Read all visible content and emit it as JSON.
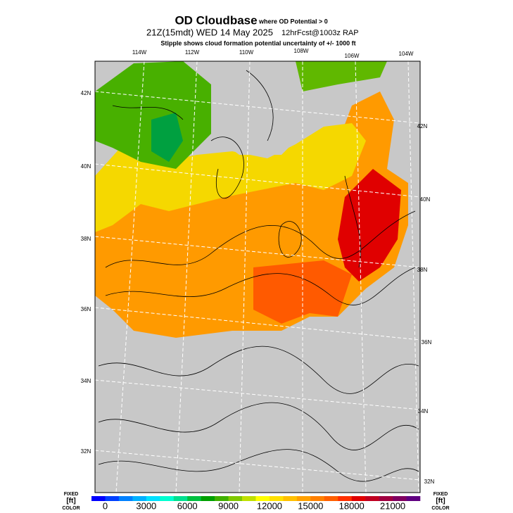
{
  "header": {
    "title": "OD Cloudbase",
    "title_note": "where OD Potential > 0",
    "valid": "21Z(15mdt) WED 14 May 2025",
    "forecast": "12hrFcst@1003z RAP",
    "subtitle": "Stipple shows cloud formation potential uncertainty of +/-  1000 ft"
  },
  "map": {
    "top_labels": [
      "114W",
      "112W",
      "110W",
      "108W",
      "106W",
      "104W"
    ],
    "left_labels": [
      "42N",
      "40N",
      "38N",
      "36N",
      "34N",
      "32N"
    ],
    "right_labels": [
      "42N",
      "40N",
      "38N",
      "36N",
      "34N",
      "32N"
    ]
  },
  "colorbar": {
    "left_note": [
      "FIXED",
      "[ft]",
      "COLOR"
    ],
    "right_note": [
      "FIXED",
      "[ft]",
      "COLOR"
    ],
    "lim": [
      -1000,
      23000
    ],
    "ticks": [
      0,
      3000,
      6000,
      9000,
      12000,
      15000,
      18000,
      21000
    ],
    "colors": [
      "#0000ff",
      "#0040ff",
      "#0080ff",
      "#00b0ff",
      "#00e0ff",
      "#00ffd0",
      "#00e090",
      "#00c040",
      "#00a000",
      "#40b000",
      "#80c800",
      "#c0e000",
      "#ffff00",
      "#ffe000",
      "#ffc000",
      "#ffa000",
      "#ff8000",
      "#ff6000",
      "#ff3000",
      "#e00000",
      "#c00020",
      "#a00040",
      "#800060",
      "#600080"
    ]
  }
}
